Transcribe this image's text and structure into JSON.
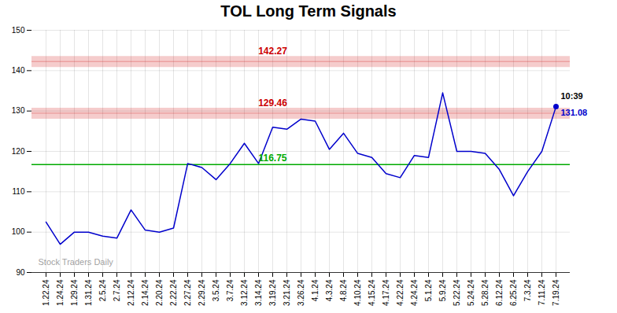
{
  "chart_data": {
    "type": "line",
    "title": "TOL Long Term Signals",
    "watermark": "Stock Traders Daily",
    "categories": [
      "1.22.24",
      "1.24.24",
      "1.29.24",
      "1.31.24",
      "2.5.24",
      "2.7.24",
      "2.12.24",
      "2.14.24",
      "2.20.24",
      "2.22.24",
      "2.27.24",
      "2.29.24",
      "3.5.24",
      "3.7.24",
      "3.12.24",
      "3.14.24",
      "3.19.24",
      "3.21.24",
      "3.26.24",
      "4.1.24",
      "4.3.24",
      "4.8.24",
      "4.10.24",
      "4.15.24",
      "4.17.24",
      "4.22.24",
      "4.24.24",
      "5.1.24",
      "5.9.24",
      "5.22.24",
      "5.24.24",
      "5.28.24",
      "6.12.24",
      "6.25.24",
      "7.3.24",
      "7.11.24",
      "7.19.24"
    ],
    "values": [
      102.5,
      97.0,
      100.0,
      100.0,
      99.0,
      98.5,
      105.5,
      100.5,
      100.0,
      101.0,
      117.0,
      116.0,
      113.0,
      117.0,
      122.0,
      117.0,
      126.0,
      125.5,
      128.0,
      127.5,
      120.5,
      124.5,
      119.5,
      118.5,
      114.5,
      113.5,
      119.0,
      118.5,
      134.5,
      120.0,
      120.0,
      119.5,
      115.5,
      109.0,
      115.0,
      120.0,
      131.08
    ],
    "color": "#0000cc",
    "ylim": [
      90,
      150
    ],
    "yticks": [
      90,
      100,
      110,
      120,
      130,
      140,
      150
    ],
    "grid": true,
    "reference_lines": [
      {
        "value": 142.27,
        "label": "142.27",
        "color": "#cc0000",
        "line_style": "band"
      },
      {
        "value": 129.46,
        "label": "129.46",
        "color": "#cc0000",
        "line_style": "band"
      },
      {
        "value": 116.75,
        "label": "116.75",
        "color": "#00aa00",
        "line_style": "solid"
      }
    ],
    "last_point": {
      "value": 131.08,
      "label": "131.08",
      "time_label": "10:39"
    }
  }
}
